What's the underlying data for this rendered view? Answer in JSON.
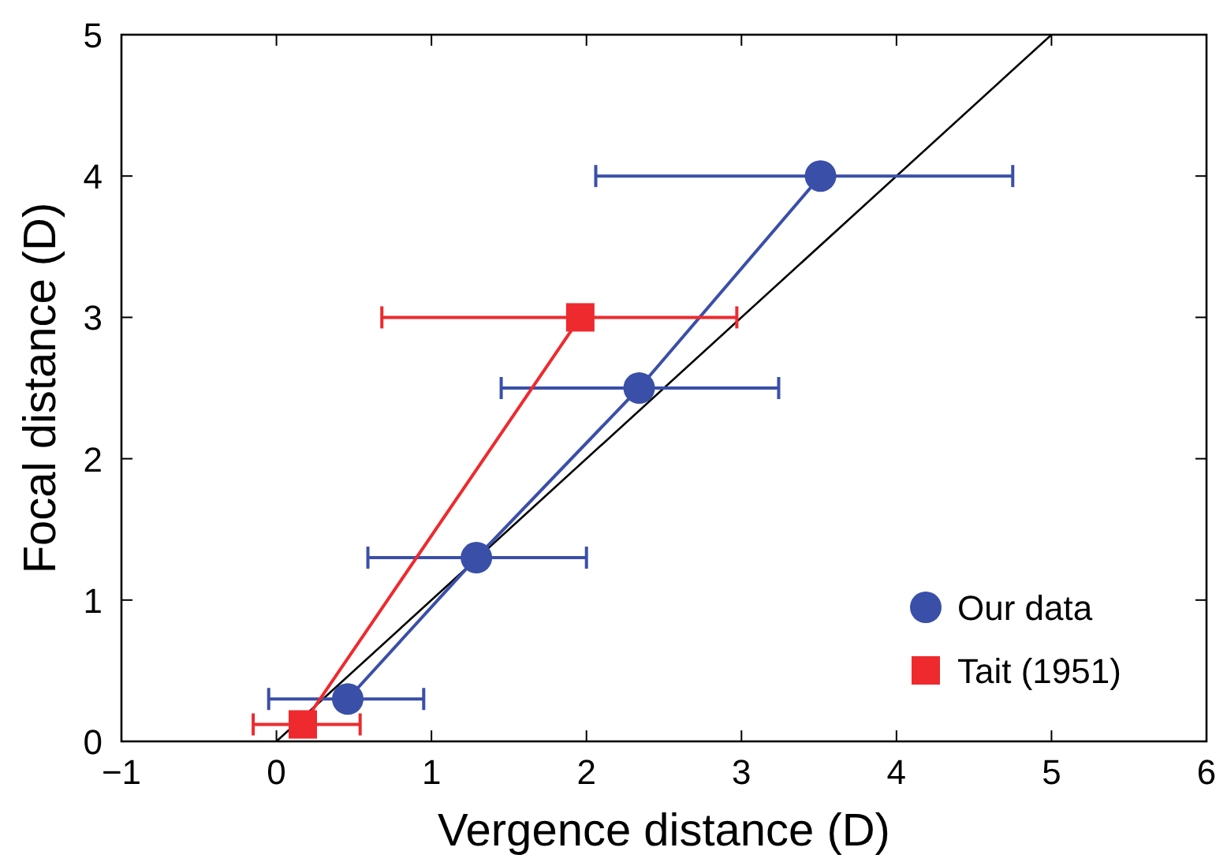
{
  "chart_data": {
    "type": "line",
    "xlabel": "Vergence distance (D)",
    "ylabel": "Focal distance (D)",
    "xlim": [
      -1,
      6
    ],
    "xticks": [
      {
        "value": -1,
        "label": "−1"
      },
      0,
      1,
      2,
      3,
      4,
      5,
      6
    ],
    "ylim": [
      0,
      5
    ],
    "yticks": [
      0,
      1,
      2,
      3,
      4,
      5
    ],
    "grid": false,
    "legend": "bottom right",
    "series": [
      {
        "color": "#000000",
        "x": [
          0,
          5
        ],
        "values": [
          0,
          5
        ],
        "marker": "none"
      },
      {
        "name": "Our data",
        "color": "#3a4fa8",
        "marker": "circle",
        "x": [
          0.46,
          1.29,
          2.34,
          3.51
        ],
        "values": [
          0.3,
          1.3,
          2.5,
          4.0
        ],
        "xerrors": [
          [
            -0.05,
            0.95
          ],
          [
            0.59,
            2.0
          ],
          [
            1.45,
            3.24
          ],
          [
            2.06,
            4.75
          ]
        ]
      },
      {
        "name": "Tait (1951)",
        "color": "#ee2a2e",
        "marker": "square",
        "x": [
          0.17,
          1.96
        ],
        "values": [
          0.12,
          3.0
        ],
        "xerrors": [
          [
            -0.15,
            0.54
          ],
          [
            0.68,
            2.97
          ]
        ]
      }
    ]
  }
}
